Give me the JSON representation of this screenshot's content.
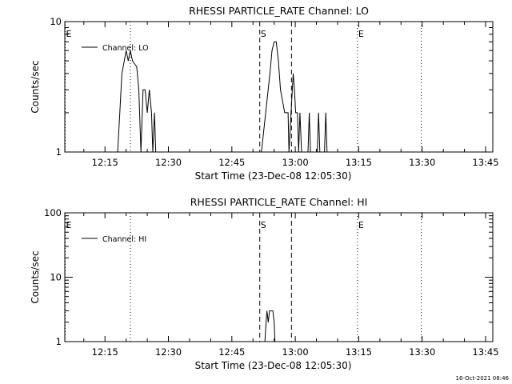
{
  "footer": {
    "timestamp": "16-Oct-2021 08:46"
  },
  "chart_data": [
    {
      "type": "line",
      "title": "RHESSI PARTICLE_RATE Channel: LO",
      "xlabel": "Start Time (23-Dec-08 12:05:30)",
      "ylabel": "Counts/sec",
      "y_scale": "log",
      "ylim": [
        1,
        10
      ],
      "y_ticks": [
        {
          "value": 1,
          "label": "1"
        },
        {
          "value": 10,
          "label": "10"
        }
      ],
      "xlim_minutes_after_start": [
        0,
        101.2
      ],
      "x_ticks": [
        {
          "label": "12:15",
          "minutes_after_start": 9.5
        },
        {
          "label": "12:30",
          "minutes_after_start": 24.5
        },
        {
          "label": "12:45",
          "minutes_after_start": 39.5
        },
        {
          "label": "13:00",
          "minutes_after_start": 54.5
        },
        {
          "label": "13:15",
          "minutes_after_start": 69.5
        },
        {
          "label": "13:30",
          "minutes_after_start": 84.5
        },
        {
          "label": "13:45",
          "minutes_after_start": 99.5
        }
      ],
      "legend": {
        "position": "top-left",
        "entries": [
          "Channel: LO"
        ]
      },
      "markers": [
        {
          "minutes_after_start": 0.1,
          "style": "dotted",
          "label": "E"
        },
        {
          "minutes_after_start": 15.5,
          "style": "dotted",
          "label": ""
        },
        {
          "minutes_after_start": 46.1,
          "style": "dashed",
          "label": "S"
        },
        {
          "minutes_after_start": 53.6,
          "style": "dashed",
          "label": ""
        },
        {
          "minutes_after_start": 69.2,
          "style": "dotted",
          "label": "E"
        },
        {
          "minutes_after_start": 84.3,
          "style": "dotted",
          "label": ""
        }
      ],
      "series": [
        {
          "name": "Channel: LO",
          "points": [
            [
              12.5,
              1
            ],
            [
              13.5,
              4
            ],
            [
              14.5,
              6
            ],
            [
              15.0,
              5
            ],
            [
              15.5,
              6
            ],
            [
              16.0,
              5
            ],
            [
              17.0,
              4.5
            ],
            [
              17.5,
              3
            ],
            [
              18.0,
              1
            ],
            [
              18.5,
              3
            ],
            [
              19.0,
              3
            ],
            [
              19.5,
              2
            ],
            [
              20.0,
              3
            ],
            [
              20.5,
              2
            ],
            [
              20.8,
              1
            ],
            [
              21.2,
              2
            ],
            [
              21.5,
              1
            ],
            [
              46.5,
              1
            ],
            [
              47.5,
              2
            ],
            [
              48.5,
              4
            ],
            [
              49.0,
              6
            ],
            [
              49.5,
              7
            ],
            [
              50.0,
              7
            ],
            [
              50.5,
              5
            ],
            [
              51.0,
              3
            ],
            [
              52.0,
              2
            ],
            [
              52.8,
              2
            ],
            [
              53.0,
              1
            ],
            [
              53.5,
              2
            ],
            [
              54.0,
              4
            ],
            [
              54.3,
              3
            ],
            [
              54.6,
              2
            ],
            [
              55.0,
              2
            ],
            [
              55.3,
              1
            ],
            [
              55.6,
              2
            ],
            [
              56.0,
              1
            ],
            [
              57.5,
              1
            ],
            [
              57.8,
              2
            ],
            [
              58.1,
              1
            ],
            [
              59.7,
              1
            ],
            [
              60.0,
              2
            ],
            [
              60.3,
              1
            ],
            [
              61.4,
              1
            ],
            [
              61.7,
              2
            ],
            [
              62.0,
              1
            ]
          ]
        }
      ]
    },
    {
      "type": "line",
      "title": "RHESSI PARTICLE_RATE Channel: HI",
      "xlabel": "Start Time (23-Dec-08 12:05:30)",
      "ylabel": "Counts/sec",
      "y_scale": "log",
      "ylim": [
        1,
        100
      ],
      "y_ticks": [
        {
          "value": 1,
          "label": "1"
        },
        {
          "value": 10,
          "label": "10"
        },
        {
          "value": 100,
          "label": "100"
        }
      ],
      "xlim_minutes_after_start": [
        0,
        101.2
      ],
      "x_ticks": [
        {
          "label": "12:15",
          "minutes_after_start": 9.5
        },
        {
          "label": "12:30",
          "minutes_after_start": 24.5
        },
        {
          "label": "12:45",
          "minutes_after_start": 39.5
        },
        {
          "label": "13:00",
          "minutes_after_start": 54.5
        },
        {
          "label": "13:15",
          "minutes_after_start": 69.5
        },
        {
          "label": "13:30",
          "minutes_after_start": 84.5
        },
        {
          "label": "13:45",
          "minutes_after_start": 99.5
        }
      ],
      "legend": {
        "position": "top-left",
        "entries": [
          "Channel: HI"
        ]
      },
      "markers": [
        {
          "minutes_after_start": 0.1,
          "style": "dotted",
          "label": "E"
        },
        {
          "minutes_after_start": 15.5,
          "style": "dotted",
          "label": ""
        },
        {
          "minutes_after_start": 46.1,
          "style": "dashed",
          "label": "S"
        },
        {
          "minutes_after_start": 53.6,
          "style": "dashed",
          "label": ""
        },
        {
          "minutes_after_start": 69.2,
          "style": "dotted",
          "label": "E"
        },
        {
          "minutes_after_start": 84.3,
          "style": "dotted",
          "label": ""
        }
      ],
      "series": [
        {
          "name": "Channel: HI",
          "points": [
            [
              47.3,
              1
            ],
            [
              47.6,
              2
            ],
            [
              47.8,
              3
            ],
            [
              48.1,
              2
            ],
            [
              48.4,
              3
            ],
            [
              49.2,
              3
            ],
            [
              49.5,
              2
            ],
            [
              49.7,
              1
            ]
          ]
        }
      ]
    }
  ]
}
